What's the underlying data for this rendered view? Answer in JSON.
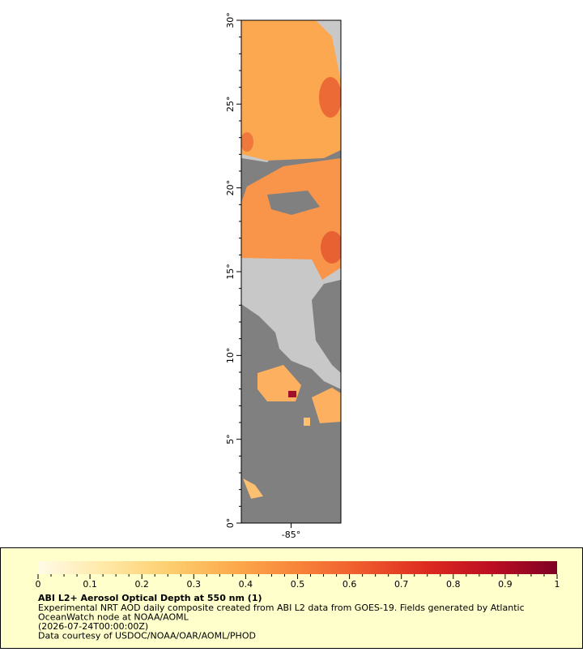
{
  "map": {
    "ylim": [
      0,
      30
    ],
    "yticks": [
      {
        "value": 0,
        "label": "0°"
      },
      {
        "value": 5,
        "label": "5°"
      },
      {
        "value": 10,
        "label": "10°"
      },
      {
        "value": 15,
        "label": "15°"
      },
      {
        "value": 20,
        "label": "20°"
      },
      {
        "value": 25,
        "label": "25°"
      },
      {
        "value": 30,
        "label": "30°"
      }
    ],
    "xlim": [
      -88,
      -82
    ],
    "xticks": [
      {
        "value": -85,
        "label": "-85°"
      }
    ]
  },
  "colorbar": {
    "lim": [
      0,
      1
    ],
    "ticks": [
      0,
      0.1,
      0.2,
      0.3,
      0.4,
      0.5,
      0.6,
      0.7,
      0.8,
      0.9,
      1
    ],
    "colors": [
      "#fffbe8",
      "#ffe9a8",
      "#fdcf70",
      "#fcab4c",
      "#f8843a",
      "#ef5a2c",
      "#dd2a20",
      "#bb0e22",
      "#7f0023"
    ]
  },
  "legend": {
    "title": "ABI L2+ Aerosol Optical Depth at 550 nm (1)",
    "lines": [
      "Experimental NRT AOD daily composite created from ABI L2 data from GOES-19. Fields generated by Atlantic",
      "OceanWatch node at NOAA/AOML",
      "(2026-07-24T00:00:00Z)",
      "Data courtesy of USDOC/NOAA/OAR/AOML/PHOD"
    ]
  }
}
